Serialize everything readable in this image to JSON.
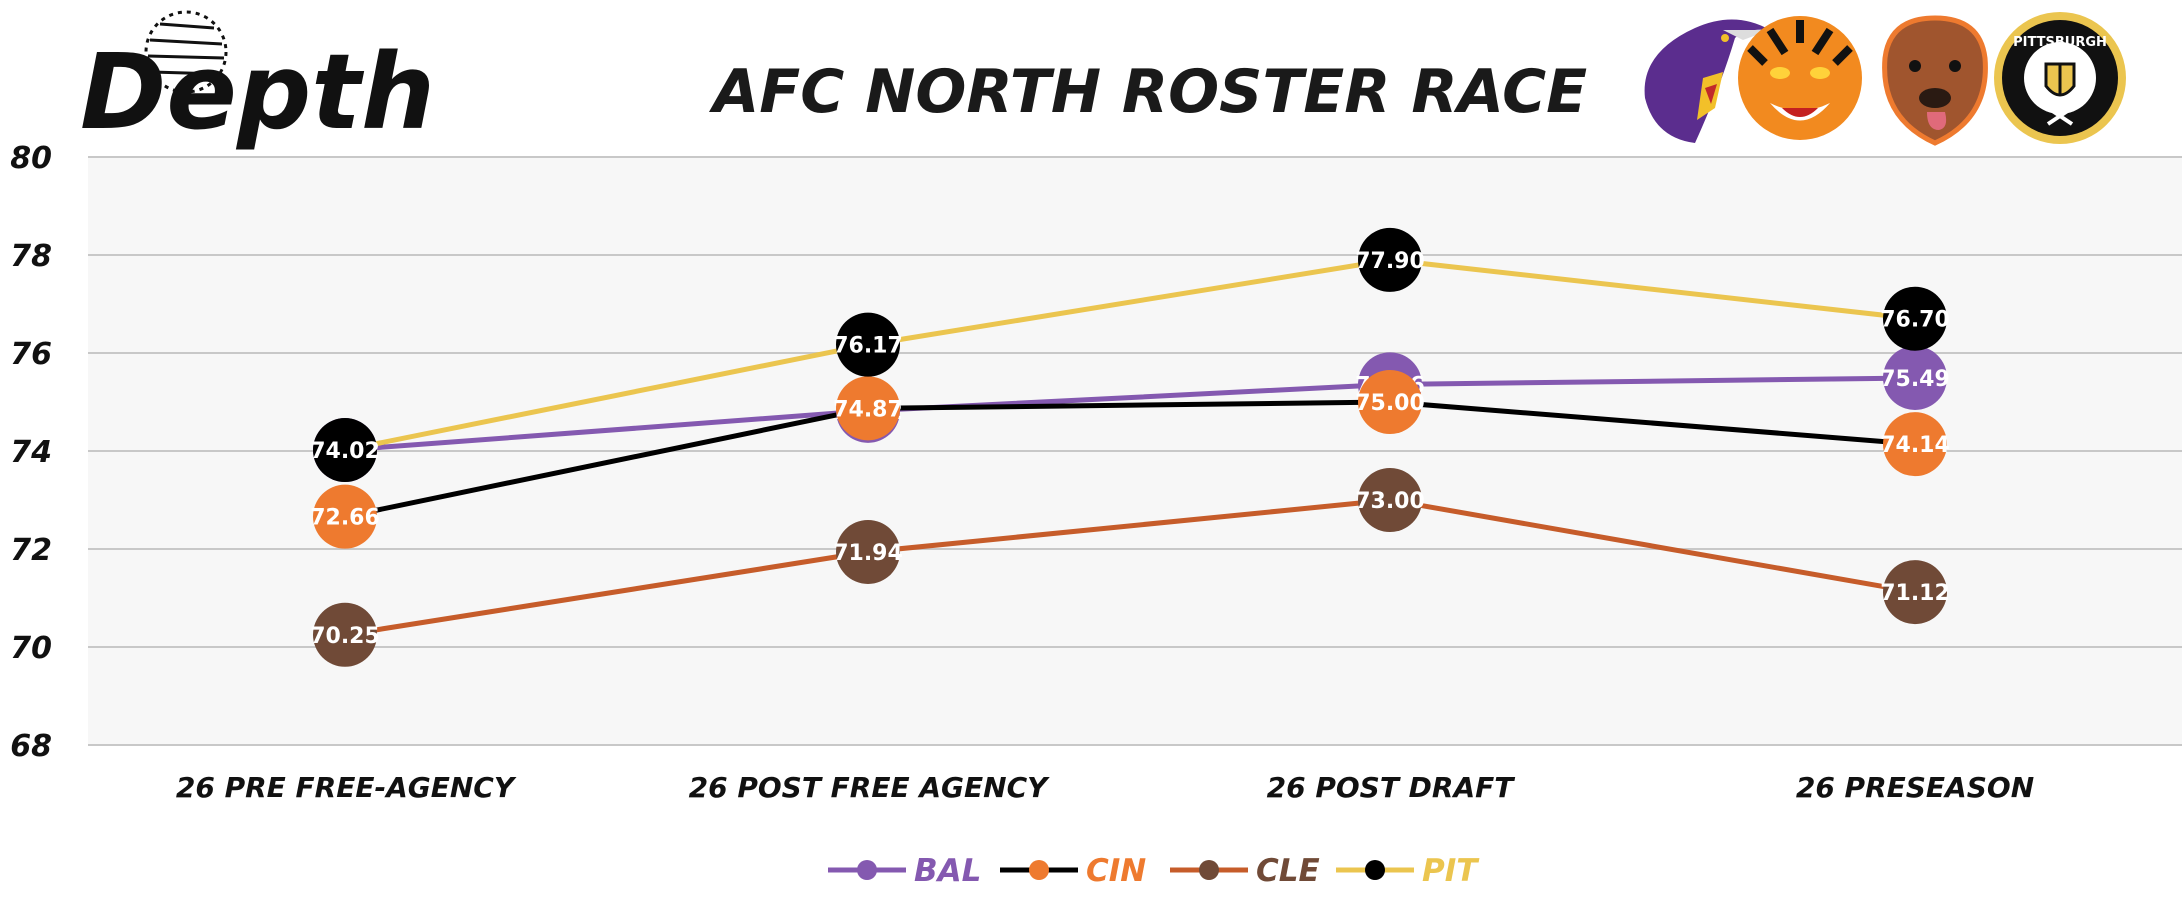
{
  "brand": {
    "logo_text": "Depth"
  },
  "colors": {
    "plot_bg": "#f7f7f7",
    "grid": "#c8c8c8",
    "BAL": "#8459b0",
    "CIN": "#ee7a2f",
    "CLE": "#704a37",
    "PIT_line": "#ebc54f",
    "PIT_marker": "#000000",
    "CIN_line": "#000000",
    "CLE_line": "#c65c2a"
  },
  "team_logos": [
    {
      "name": "raven-logo",
      "team": "BAL"
    },
    {
      "name": "tiger-logo",
      "team": "CIN"
    },
    {
      "name": "dog-logo",
      "team": "CLE"
    },
    {
      "name": "pittsburgh-logo",
      "team": "PIT",
      "text": "PITTSBURGH"
    }
  ],
  "chart_data": {
    "type": "line",
    "title": "AFC NORTH ROSTER RACE",
    "xlabel": "",
    "ylabel": "",
    "categories": [
      "26 PRE FREE-AGENCY",
      "26 POST FREE AGENCY",
      "26 POST DRAFT",
      "26 PRESEASON"
    ],
    "ylim": [
      68,
      80
    ],
    "yticks": [
      68,
      70,
      72,
      74,
      76,
      78,
      80
    ],
    "grid": true,
    "legend_position": "bottom-center",
    "series": [
      {
        "name": "BAL",
        "values": [
          74.02,
          74.82,
          75.36,
          75.49
        ],
        "line_color": "#8459b0",
        "marker_color": "#8459b0"
      },
      {
        "name": "CIN",
        "values": [
          72.66,
          74.87,
          75.0,
          74.14
        ],
        "line_color": "#000000",
        "marker_color": "#ee7a2f"
      },
      {
        "name": "CLE",
        "values": [
          70.25,
          71.94,
          73.0,
          71.12
        ],
        "line_color": "#c65c2a",
        "marker_color": "#704a37"
      },
      {
        "name": "PIT",
        "values": [
          74.02,
          76.17,
          77.9,
          76.7
        ],
        "line_color": "#ebc54f",
        "marker_color": "#000000"
      }
    ],
    "point_labels": [
      [
        "74.02",
        "74.82",
        "75.36",
        "75.49"
      ],
      [
        "72.66",
        "74.87",
        "75.00",
        "74.14"
      ],
      [
        "70.25",
        "71.94",
        "73.00",
        "71.12"
      ],
      [
        "74.02",
        "76.17",
        "77.90",
        "76.70"
      ]
    ]
  }
}
